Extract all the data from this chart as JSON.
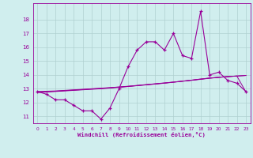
{
  "xlabel": "Windchill (Refroidissement éolien,°C)",
  "x": [
    0,
    1,
    2,
    3,
    4,
    5,
    6,
    7,
    8,
    9,
    10,
    11,
    12,
    13,
    14,
    15,
    16,
    17,
    18,
    19,
    20,
    21,
    22,
    23
  ],
  "y_main": [
    12.8,
    12.6,
    12.2,
    12.2,
    11.8,
    11.4,
    11.4,
    10.8,
    11.6,
    13.0,
    14.6,
    15.8,
    16.4,
    16.4,
    15.8,
    17.0,
    15.4,
    15.2,
    18.6,
    14.0,
    14.2,
    13.6,
    13.4,
    12.8
  ],
  "y_line1": [
    12.8,
    12.82,
    12.84,
    12.88,
    12.92,
    12.96,
    13.0,
    13.04,
    13.08,
    13.13,
    13.18,
    13.24,
    13.3,
    13.36,
    13.42,
    13.48,
    13.55,
    13.62,
    13.7,
    13.77,
    13.83,
    13.88,
    13.92,
    13.96
  ],
  "y_line2": [
    12.76,
    12.79,
    12.82,
    12.86,
    12.9,
    12.94,
    12.98,
    13.02,
    13.07,
    13.12,
    13.17,
    13.23,
    13.29,
    13.35,
    13.41,
    13.48,
    13.55,
    13.62,
    13.7,
    13.77,
    13.83,
    13.88,
    13.92,
    13.96
  ],
  "y_line3": [
    12.72,
    12.76,
    12.8,
    12.84,
    12.88,
    12.92,
    12.96,
    13.0,
    13.05,
    13.1,
    13.16,
    13.22,
    13.28,
    13.34,
    13.4,
    13.47,
    13.54,
    13.61,
    13.68,
    13.76,
    13.82,
    13.88,
    13.92,
    12.76
  ],
  "color": "#990099",
  "bg_color": "#d0eeee",
  "grid_color": "#b0d0d0",
  "ylim": [
    10.5,
    19.2
  ],
  "xlim": [
    -0.5,
    23.5
  ],
  "yticks": [
    11,
    12,
    13,
    14,
    15,
    16,
    17,
    18
  ],
  "xticks": [
    0,
    1,
    2,
    3,
    4,
    5,
    6,
    7,
    8,
    9,
    10,
    11,
    12,
    13,
    14,
    15,
    16,
    17,
    18,
    19,
    20,
    21,
    22,
    23
  ]
}
